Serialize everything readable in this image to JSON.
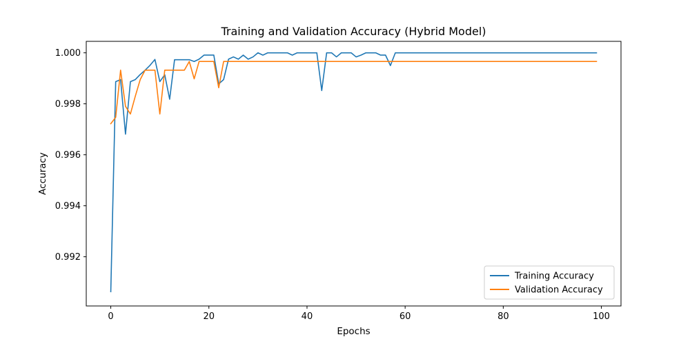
{
  "chart_data": {
    "type": "line",
    "title": "Training and Validation Accuracy (Hybrid Model)",
    "xlabel": "Epochs",
    "ylabel": "Accuracy",
    "xlim": [
      -5,
      104
    ],
    "ylim": [
      0.99007,
      1.00045
    ],
    "xticks": [
      0,
      20,
      40,
      60,
      80,
      100
    ],
    "xtick_labels": [
      "0",
      "20",
      "40",
      "60",
      "80",
      "100"
    ],
    "yticks": [
      0.992,
      0.994,
      0.996,
      0.998,
      1.0
    ],
    "ytick_labels": [
      "0.992",
      "0.994",
      "0.996",
      "0.998",
      "1.000"
    ],
    "grid": false,
    "legend_position": "lower-right",
    "series": [
      {
        "name": "Training Accuracy",
        "color": "#1f77b4",
        "x": [
          0,
          1,
          2,
          3,
          4,
          5,
          6,
          7,
          8,
          9,
          10,
          11,
          12,
          13,
          14,
          15,
          16,
          17,
          18,
          19,
          20,
          21,
          22,
          23,
          24,
          25,
          26,
          27,
          28,
          29,
          30,
          31,
          32,
          33,
          34,
          35,
          36,
          37,
          38,
          39,
          40,
          41,
          42,
          43,
          44,
          45,
          46,
          47,
          48,
          49,
          50,
          51,
          52,
          53,
          54,
          55,
          56,
          57,
          58,
          59,
          60,
          61,
          62,
          63,
          64,
          65,
          66,
          67,
          68,
          69,
          70,
          71,
          72,
          73,
          74,
          75,
          76,
          77,
          78,
          79,
          80,
          81,
          82,
          83,
          84,
          85,
          86,
          87,
          88,
          89,
          90,
          91,
          92,
          93,
          94,
          95,
          96,
          97,
          98,
          99
        ],
        "values": [
          0.99063,
          0.99887,
          0.99895,
          0.99681,
          0.99887,
          0.99895,
          0.99915,
          0.99932,
          0.99951,
          0.99974,
          0.99887,
          0.99914,
          0.99818,
          0.99973,
          0.99973,
          0.99973,
          0.99973,
          0.99966,
          0.99975,
          0.99991,
          0.99991,
          0.99991,
          0.99878,
          0.99895,
          0.99975,
          0.99984,
          0.99975,
          0.99991,
          0.99975,
          0.99984,
          1.0,
          0.99991,
          1.0,
          1.0,
          1.0,
          1.0,
          1.0,
          0.99991,
          1.0,
          1.0,
          1.0,
          1.0,
          1.0,
          0.99852,
          1.0,
          1.0,
          0.99984,
          1.0,
          1.0,
          1.0,
          0.99984,
          0.99991,
          1.0,
          1.0,
          1.0,
          0.99991,
          0.99991,
          0.9995,
          1.0,
          1.0,
          1.0,
          1.0,
          1.0,
          1.0,
          1.0,
          1.0,
          1.0,
          1.0,
          1.0,
          1.0,
          1.0,
          1.0,
          1.0,
          1.0,
          1.0,
          1.0,
          1.0,
          1.0,
          1.0,
          1.0,
          1.0,
          1.0,
          1.0,
          1.0,
          1.0,
          1.0,
          1.0,
          1.0,
          1.0,
          1.0,
          1.0,
          1.0,
          1.0,
          1.0,
          1.0,
          1.0,
          1.0,
          1.0,
          1.0,
          1.0
        ]
      },
      {
        "name": "Validation Accuracy",
        "color": "#ff7f0e",
        "x": [
          0,
          1,
          2,
          3,
          4,
          5,
          6,
          7,
          8,
          9,
          10,
          11,
          12,
          13,
          14,
          15,
          16,
          17,
          18,
          19,
          20,
          21,
          22,
          23,
          24,
          25,
          26,
          27,
          28,
          29,
          30,
          31,
          32,
          33,
          34,
          35,
          36,
          37,
          38,
          39,
          40,
          41,
          42,
          43,
          44,
          45,
          46,
          47,
          48,
          49,
          50,
          51,
          52,
          53,
          54,
          55,
          56,
          57,
          58,
          59,
          60,
          61,
          62,
          63,
          64,
          65,
          66,
          67,
          68,
          69,
          70,
          71,
          72,
          73,
          74,
          75,
          76,
          77,
          78,
          79,
          80,
          81,
          82,
          83,
          84,
          85,
          86,
          87,
          88,
          89,
          90,
          91,
          92,
          93,
          94,
          95,
          96,
          97,
          98,
          99
        ],
        "values": [
          0.99722,
          0.99747,
          0.99932,
          0.9979,
          0.9976,
          0.9983,
          0.99895,
          0.99932,
          0.99932,
          0.99932,
          0.9976,
          0.99932,
          0.99932,
          0.99932,
          0.99932,
          0.99932,
          0.99966,
          0.99898,
          0.99966,
          0.99966,
          0.99966,
          0.99966,
          0.99863,
          0.99966,
          0.99966,
          0.99966,
          0.99966,
          0.99966,
          0.99966,
          0.99966,
          0.99966,
          0.99966,
          0.99966,
          0.99966,
          0.99966,
          0.99966,
          0.99966,
          0.99966,
          0.99966,
          0.99966,
          0.99966,
          0.99966,
          0.99966,
          0.99966,
          0.99966,
          0.99966,
          0.99966,
          0.99966,
          0.99966,
          0.99966,
          0.99966,
          0.99966,
          0.99966,
          0.99966,
          0.99966,
          0.99966,
          0.99966,
          0.99966,
          0.99966,
          0.99966,
          0.99966,
          0.99966,
          0.99966,
          0.99966,
          0.99966,
          0.99966,
          0.99966,
          0.99966,
          0.99966,
          0.99966,
          0.99966,
          0.99966,
          0.99966,
          0.99966,
          0.99966,
          0.99966,
          0.99966,
          0.99966,
          0.99966,
          0.99966,
          0.99966,
          0.99966,
          0.99966,
          0.99966,
          0.99966,
          0.99966,
          0.99966,
          0.99966,
          0.99966,
          0.99966,
          0.99966,
          0.99966,
          0.99966,
          0.99966,
          0.99966,
          0.99966,
          0.99966,
          0.99966,
          0.99966,
          0.99966
        ]
      }
    ]
  }
}
